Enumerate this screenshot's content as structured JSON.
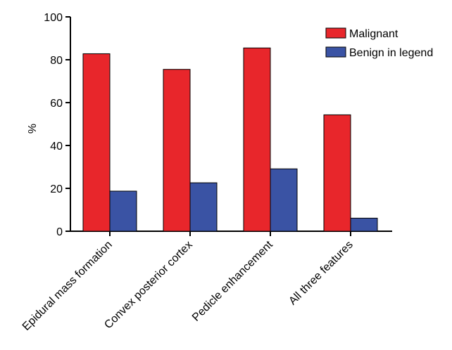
{
  "chart_data": {
    "type": "bar",
    "title": "",
    "xlabel": "",
    "ylabel": "%",
    "ylim": [
      0,
      100
    ],
    "yticks": [
      0,
      20,
      40,
      60,
      80,
      100
    ],
    "grid": false,
    "legend_position": "top-right",
    "categories": [
      "Epidural mass formation",
      "Convex posterior cortex",
      "Pedicle enhancement",
      "All three features"
    ],
    "series": [
      {
        "name": "Malignant",
        "color": "#e8262b",
        "values": [
          82.8,
          75.5,
          85.5,
          54.3
        ]
      },
      {
        "name": "Benign in legend",
        "color": "#3a53a4",
        "values": [
          18.7,
          22.6,
          29.1,
          6.1
        ]
      }
    ]
  }
}
